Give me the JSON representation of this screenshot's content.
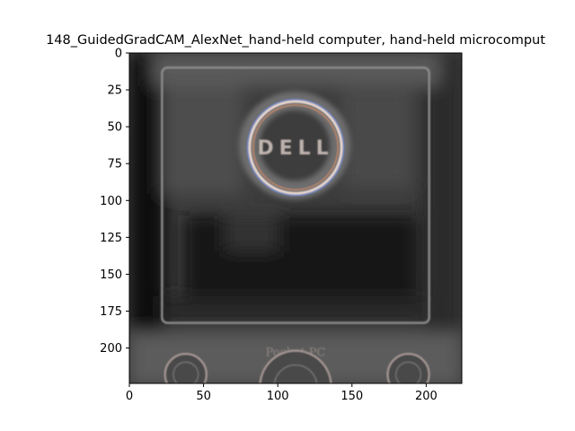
{
  "chart_data": {
    "type": "heatmap",
    "title": "148_GuidedGradCAM_AlexNet_hand-held computer, hand-held microcomput",
    "xlabel": "",
    "ylabel": "",
    "xlim": [
      0,
      224
    ],
    "ylim": [
      224,
      0
    ],
    "x_ticks": [
      "0",
      "50",
      "100",
      "150",
      "200"
    ],
    "y_ticks": [
      "0",
      "25",
      "50",
      "75",
      "100",
      "125",
      "150",
      "175",
      "200"
    ],
    "grid": false,
    "colormap": "gray",
    "image_text": [
      "DELL",
      "Pocket PC"
    ],
    "features": {
      "logo_ring": {
        "cx": 112,
        "cy": 64,
        "r": 31
      },
      "screen_frame": {
        "x0": 22,
        "y0": 10,
        "x1": 202,
        "y1": 183
      },
      "buttons": [
        {
          "cx": 38,
          "cy": 218,
          "r": 14
        },
        {
          "cx": 112,
          "cy": 226,
          "r": 24
        },
        {
          "cx": 188,
          "cy": 218,
          "r": 14
        }
      ]
    }
  }
}
